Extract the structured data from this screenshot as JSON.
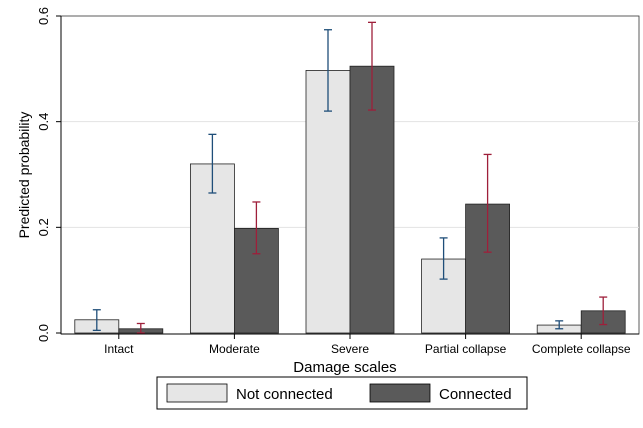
{
  "chart_data": {
    "type": "bar",
    "title": "",
    "xlabel": "Damage scales",
    "ylabel": "Predicted probability",
    "ylim": [
      0,
      0.6
    ],
    "yticks": [
      0.0,
      0.2,
      0.4,
      0.6
    ],
    "ytick_labels": [
      "0.0",
      "0.2",
      "0.4",
      "0.6"
    ],
    "grid": true,
    "legend_position": "bottom",
    "categories": [
      "Intact",
      "Moderate",
      "Severe",
      "Partial collapse",
      "Complete collapse"
    ],
    "series": [
      {
        "name": "Not connected",
        "color": "#e6e6e6",
        "error_color": "#1f4e79",
        "values": [
          0.025,
          0.32,
          0.497,
          0.14,
          0.015
        ],
        "ci_low": [
          0.005,
          0.265,
          0.42,
          0.102,
          0.008
        ],
        "ci_high": [
          0.044,
          0.376,
          0.574,
          0.18,
          0.023
        ]
      },
      {
        "name": "Connected",
        "color": "#5a5a5a",
        "error_color": "#9e1f3a",
        "values": [
          0.008,
          0.198,
          0.505,
          0.244,
          0.042
        ],
        "ci_low": [
          0.0,
          0.15,
          0.422,
          0.153,
          0.016
        ],
        "ci_high": [
          0.018,
          0.248,
          0.588,
          0.338,
          0.068
        ]
      }
    ]
  }
}
